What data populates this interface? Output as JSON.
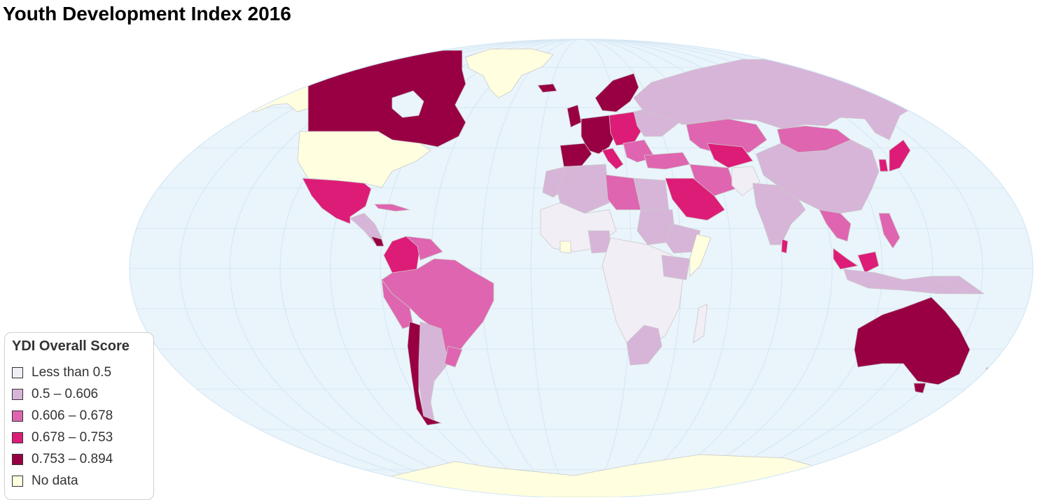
{
  "title": "Youth Development Index 2016",
  "legend": {
    "title": "YDI Overall Score",
    "items": [
      {
        "label": "Less than 0.5",
        "color": "#f1eef6"
      },
      {
        "label": "0.5 – 0.606",
        "color": "#d7b5d8"
      },
      {
        "label": "0.606 – 0.678",
        "color": "#df65b0"
      },
      {
        "label": "0.678 – 0.753",
        "color": "#dd1c77"
      },
      {
        "label": "0.753 – 0.894",
        "color": "#980043"
      },
      {
        "label": "No data",
        "color": "#ffffe0"
      }
    ]
  },
  "colors": {
    "ocean": "#eaf4fb",
    "graticule": "#d6e8f5",
    "border": "#c9c9c9"
  }
}
